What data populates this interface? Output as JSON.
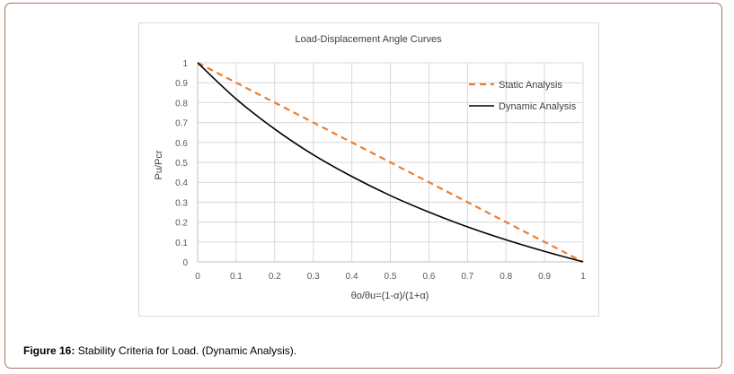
{
  "figure": {
    "caption_label": "Figure 16:",
    "caption_text": " Stability Criteria for Load. (Dynamic Analysis)."
  },
  "chart_data": {
    "type": "line",
    "title": "Load-Displacement Angle Curves",
    "xlabel": "θo/θu=(1-α)/(1+α)",
    "ylabel": "Pu/Pcr",
    "xlim": [
      0,
      1
    ],
    "ylim": [
      0,
      1
    ],
    "x_ticks": [
      "0",
      "0.1",
      "0.2",
      "0.3",
      "0.4",
      "0.5",
      "0.6",
      "0.7",
      "0.8",
      "0.9",
      "1"
    ],
    "y_ticks": [
      "0",
      "0.1",
      "0.2",
      "0.3",
      "0.4",
      "0.5",
      "0.6",
      "0.7",
      "0.8",
      "0.9",
      "1"
    ],
    "legend_position": "top-right",
    "grid": true,
    "series": [
      {
        "name": "Static Analysis",
        "style": "dashed",
        "color": "#ed7d31",
        "x": [
          0,
          0.1,
          0.2,
          0.3,
          0.4,
          0.5,
          0.6,
          0.7,
          0.8,
          0.9,
          1
        ],
        "y": [
          1,
          0.9,
          0.8,
          0.7,
          0.6,
          0.5,
          0.4,
          0.3,
          0.2,
          0.1,
          0
        ]
      },
      {
        "name": "Dynamic Analysis",
        "style": "solid",
        "color": "#000000",
        "x": [
          0,
          0.1,
          0.2,
          0.3,
          0.4,
          0.5,
          0.6,
          0.7,
          0.8,
          0.9,
          1
        ],
        "y": [
          1,
          0.818,
          0.667,
          0.538,
          0.429,
          0.333,
          0.25,
          0.176,
          0.111,
          0.053,
          0
        ]
      }
    ]
  }
}
